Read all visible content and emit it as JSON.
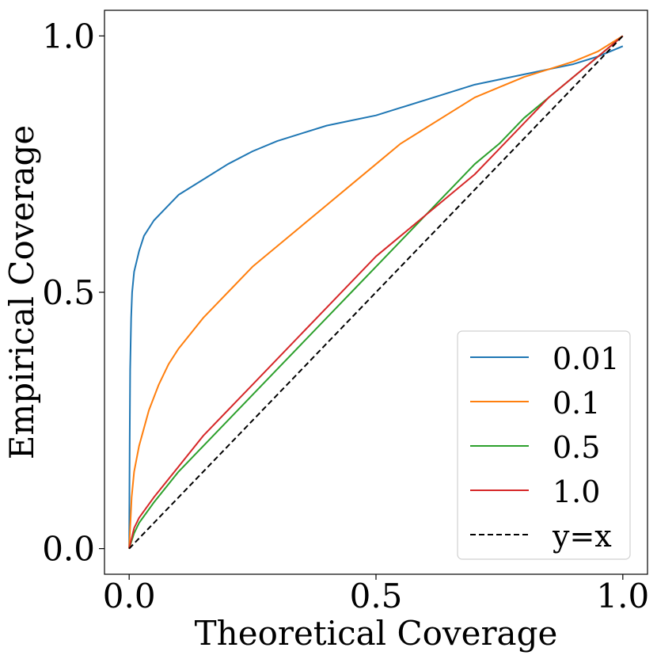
{
  "chart_data": {
    "type": "line",
    "title": "",
    "xlabel": "Theoretical Coverage",
    "ylabel": "Empirical Coverage",
    "xlim": [
      -0.05,
      1.05
    ],
    "ylim": [
      -0.05,
      1.05
    ],
    "xticks": [
      0.0,
      0.5,
      1.0
    ],
    "yticks": [
      0.0,
      0.5,
      1.0
    ],
    "xtick_labels": [
      "0.0",
      "0.5",
      "1.0"
    ],
    "ytick_labels": [
      "0.0",
      "0.5",
      "1.0"
    ],
    "grid": false,
    "legend_position": "lower-right",
    "series": [
      {
        "name": "0.01",
        "color": "#1f77b4",
        "style": "solid",
        "x": [
          0.0,
          0.001,
          0.002,
          0.004,
          0.006,
          0.01,
          0.02,
          0.03,
          0.05,
          0.07,
          0.1,
          0.15,
          0.2,
          0.25,
          0.3,
          0.35,
          0.4,
          0.45,
          0.5,
          0.55,
          0.6,
          0.65,
          0.7,
          0.75,
          0.8,
          0.85,
          0.9,
          0.95,
          1.0
        ],
        "y": [
          0.0,
          0.2,
          0.35,
          0.45,
          0.5,
          0.54,
          0.58,
          0.61,
          0.64,
          0.66,
          0.69,
          0.72,
          0.75,
          0.775,
          0.795,
          0.81,
          0.825,
          0.835,
          0.845,
          0.86,
          0.875,
          0.89,
          0.905,
          0.915,
          0.925,
          0.935,
          0.945,
          0.96,
          0.98
        ]
      },
      {
        "name": "0.1",
        "color": "#ff7f0e",
        "style": "solid",
        "x": [
          0.0,
          0.005,
          0.01,
          0.02,
          0.04,
          0.06,
          0.08,
          0.1,
          0.15,
          0.2,
          0.25,
          0.3,
          0.35,
          0.4,
          0.45,
          0.5,
          0.55,
          0.6,
          0.65,
          0.7,
          0.75,
          0.8,
          0.85,
          0.9,
          0.95,
          1.0
        ],
        "y": [
          0.0,
          0.1,
          0.15,
          0.2,
          0.27,
          0.32,
          0.36,
          0.39,
          0.45,
          0.5,
          0.55,
          0.59,
          0.63,
          0.67,
          0.71,
          0.75,
          0.79,
          0.82,
          0.85,
          0.88,
          0.9,
          0.92,
          0.935,
          0.95,
          0.97,
          1.0
        ]
      },
      {
        "name": "0.5",
        "color": "#2ca02c",
        "style": "solid",
        "x": [
          0.0,
          0.01,
          0.02,
          0.05,
          0.1,
          0.15,
          0.2,
          0.25,
          0.3,
          0.35,
          0.4,
          0.45,
          0.5,
          0.55,
          0.6,
          0.65,
          0.7,
          0.75,
          0.8,
          0.85,
          0.9,
          0.95,
          1.0
        ],
        "y": [
          0.0,
          0.03,
          0.05,
          0.09,
          0.15,
          0.2,
          0.25,
          0.3,
          0.35,
          0.4,
          0.45,
          0.5,
          0.55,
          0.6,
          0.65,
          0.7,
          0.75,
          0.79,
          0.84,
          0.88,
          0.92,
          0.96,
          1.0
        ]
      },
      {
        "name": "1.0",
        "color": "#d62728",
        "style": "solid",
        "x": [
          0.0,
          0.01,
          0.02,
          0.05,
          0.1,
          0.15,
          0.2,
          0.25,
          0.3,
          0.35,
          0.4,
          0.45,
          0.5,
          0.55,
          0.6,
          0.65,
          0.7,
          0.75,
          0.8,
          0.85,
          0.9,
          0.95,
          1.0
        ],
        "y": [
          0.0,
          0.04,
          0.06,
          0.1,
          0.16,
          0.22,
          0.27,
          0.32,
          0.37,
          0.42,
          0.47,
          0.52,
          0.57,
          0.61,
          0.65,
          0.69,
          0.73,
          0.78,
          0.83,
          0.88,
          0.92,
          0.96,
          1.0
        ]
      },
      {
        "name": "y=x",
        "color": "#000000",
        "style": "dashed",
        "x": [
          0.0,
          1.0
        ],
        "y": [
          0.0,
          1.0
        ]
      }
    ]
  }
}
